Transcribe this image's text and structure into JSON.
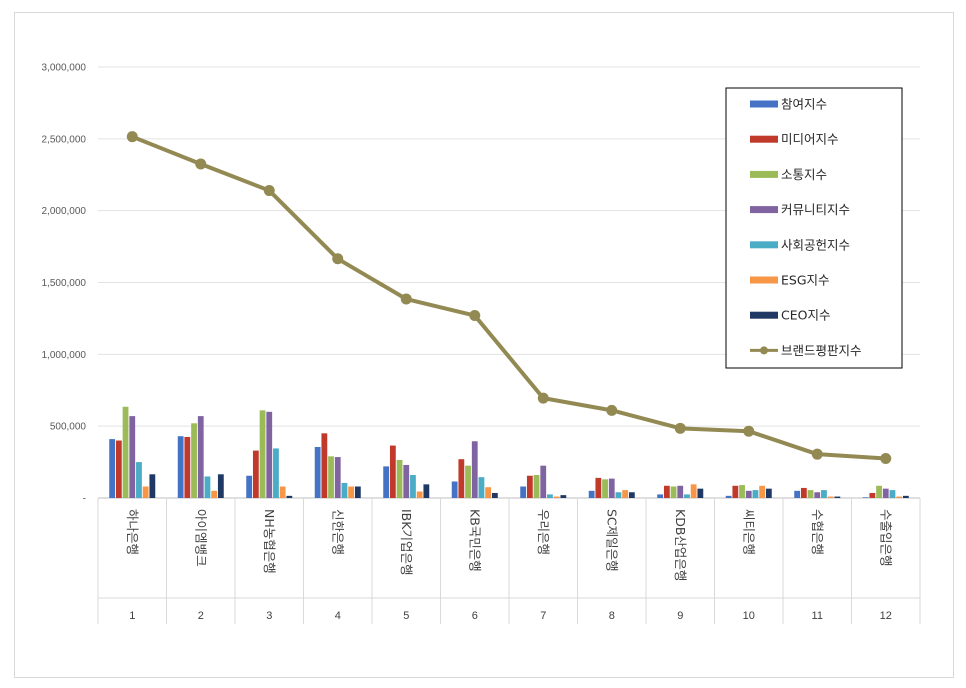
{
  "chart_data": {
    "type": "bar",
    "y_ticks": [
      "3,000,000",
      "2,500,000",
      "2,000,000",
      "1,500,000",
      "1,000,000",
      "500,000",
      "-"
    ],
    "ylim": [
      0,
      3000000
    ],
    "categories": [
      "하나은행",
      "아이엠뱅크",
      "NH농협은행",
      "신한은행",
      "IBK기업은행",
      "KB국민은행",
      "우리은행",
      "SC제일은행",
      "KDB산업은행",
      "씨티은행",
      "수협은행",
      "수출입은행"
    ],
    "ranks": [
      "1",
      "2",
      "3",
      "4",
      "5",
      "6",
      "7",
      "8",
      "9",
      "10",
      "11",
      "12"
    ],
    "grid": true,
    "legend_position": "top-right",
    "series": [
      {
        "name": "참여지수",
        "kind": "bar",
        "color": "#4472C4",
        "values": [
          410000,
          430000,
          155000,
          355000,
          220000,
          115000,
          80000,
          50000,
          25000,
          15000,
          50000,
          5000
        ]
      },
      {
        "name": "미디어지수",
        "kind": "bar",
        "color": "#C0392B",
        "values": [
          400000,
          425000,
          330000,
          450000,
          365000,
          270000,
          155000,
          140000,
          85000,
          85000,
          70000,
          35000
        ]
      },
      {
        "name": "소통지수",
        "kind": "bar",
        "color": "#9BBB59",
        "values": [
          635000,
          520000,
          610000,
          290000,
          265000,
          225000,
          160000,
          130000,
          80000,
          90000,
          55000,
          85000
        ]
      },
      {
        "name": "커뮤니티지수",
        "kind": "bar",
        "color": "#8064A2",
        "values": [
          570000,
          570000,
          600000,
          285000,
          230000,
          395000,
          225000,
          135000,
          85000,
          50000,
          40000,
          65000
        ]
      },
      {
        "name": "사회공헌지수",
        "kind": "bar",
        "color": "#4BACC6",
        "values": [
          250000,
          150000,
          345000,
          105000,
          160000,
          145000,
          25000,
          40000,
          25000,
          55000,
          55000,
          55000
        ]
      },
      {
        "name": "ESG지수",
        "kind": "bar",
        "color": "#F79646",
        "values": [
          80000,
          50000,
          80000,
          80000,
          45000,
          75000,
          10000,
          55000,
          95000,
          85000,
          10000,
          10000
        ]
      },
      {
        "name": "CEO지수",
        "kind": "bar",
        "color": "#1F3864",
        "values": [
          165000,
          165000,
          15000,
          80000,
          95000,
          35000,
          20000,
          40000,
          65000,
          65000,
          10000,
          15000
        ]
      },
      {
        "name": "브랜드평판지수",
        "kind": "line",
        "color": "#938953",
        "values": [
          2515000,
          2325000,
          2140000,
          1665000,
          1385000,
          1270000,
          695000,
          610000,
          485000,
          465000,
          305000,
          275000
        ]
      }
    ]
  }
}
